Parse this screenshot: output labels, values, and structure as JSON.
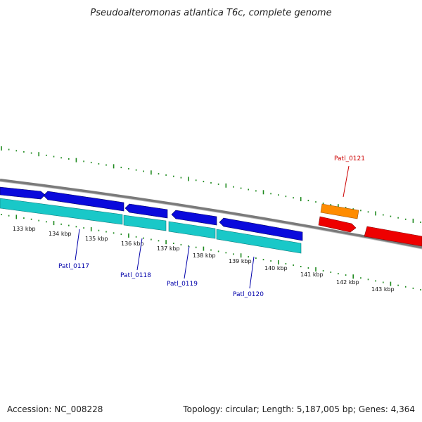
{
  "header": {
    "title": "Pseudoalteromonas atlantica T6c, complete genome"
  },
  "footer": {
    "accession": "Accession: NC_008228",
    "summary": "Topology: circular; Length: 5,187,005 bp; Genes: 4,364"
  },
  "colors": {
    "backbone": "#7a7a7a",
    "dots": "#1f8a1f",
    "cds_forward": "#0a0adc",
    "cds_reverse_track": "#19c8c8",
    "highlight_orange": "#ff8c00",
    "highlight_red": "#ee0000",
    "label_blue": "#0000aa",
    "label_red": "#cc0000"
  },
  "scale": {
    "tick_labels": [
      "133 kbp",
      "134 kbp",
      "135 kbp",
      "136 kbp",
      "137 kbp",
      "138 kbp",
      "139 kbp",
      "140 kbp",
      "141 kbp",
      "142 kbp",
      "143 kbp"
    ]
  },
  "genes": [
    {
      "name": "Patl_0117",
      "color": "blue"
    },
    {
      "name": "Patl_0118",
      "color": "blue"
    },
    {
      "name": "Patl_0119",
      "color": "blue"
    },
    {
      "name": "Patl_0120",
      "color": "blue"
    },
    {
      "name": "Patl_0121",
      "color": "red"
    }
  ]
}
